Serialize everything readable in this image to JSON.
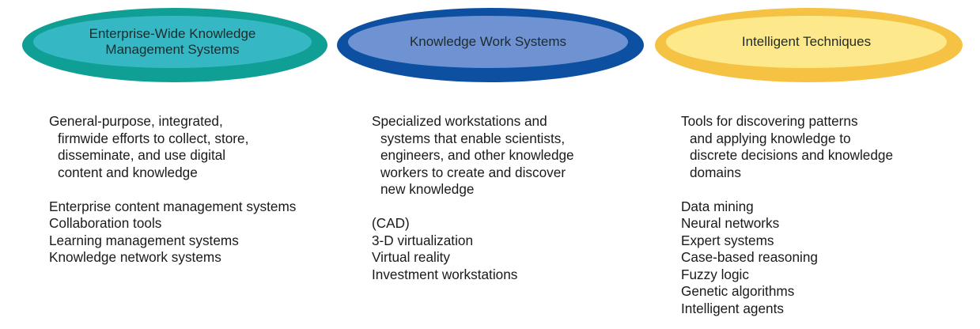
{
  "columns": [
    {
      "title_lines": [
        "Enterprise-Wide Knowledge",
        "Management Systems"
      ],
      "description_lines": [
        "General-purpose, integrated,",
        "firmwide efforts to collect, store,",
        "disseminate, and use digital",
        "content and knowledge"
      ],
      "items": [
        "Enterprise content management systems",
        "Collaboration tools",
        "Learning management systems",
        "Knowledge network systems"
      ],
      "colors": {
        "outer": "#0f9f95",
        "inner": "#36b8c4"
      }
    },
    {
      "title_lines": [
        "Knowledge Work Systems"
      ],
      "description_lines": [
        "Specialized workstations and",
        "systems that enable scientists,",
        "engineers, and other knowledge",
        "workers to create and discover",
        "new knowledge"
      ],
      "items": [
        "(CAD)",
        "3-D virtualization",
        "Virtual reality",
        "Investment workstations"
      ],
      "colors": {
        "outer": "#0d4fa0",
        "inner": "#6f93d2"
      }
    },
    {
      "title_lines": [
        "Intelligent Techniques"
      ],
      "description_lines": [
        "Tools for discovering patterns",
        "and applying knowledge to",
        "discrete decisions and knowledge",
        "domains"
      ],
      "items": [
        "Data mining",
        "Neural networks",
        "Expert systems",
        "Case-based reasoning",
        "Fuzzy logic",
        "Genetic algorithms",
        "Intelligent agents"
      ],
      "colors": {
        "outer": "#f5c244",
        "inner": "#fde98c"
      }
    }
  ]
}
